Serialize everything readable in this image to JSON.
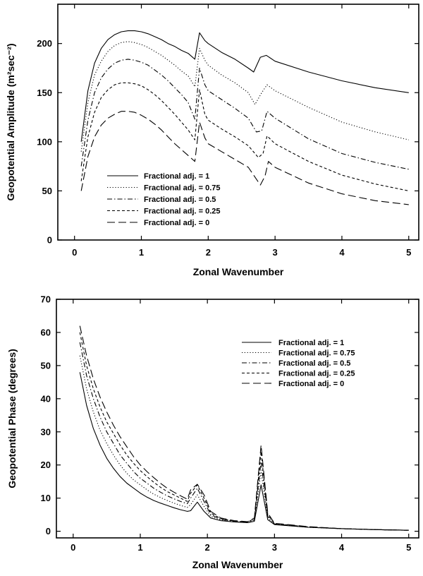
{
  "chart_data": [
    {
      "type": "line",
      "xlabel": "Zonal Wavenumber",
      "ylabel": "Geopotential Amplitude (m²sec⁻²)",
      "xlim": [
        -0.25,
        5.15
      ],
      "ylim": [
        0,
        240
      ],
      "xticks": [
        "0",
        "1",
        "2",
        "3",
        "4",
        "5"
      ],
      "yticks": [
        "0",
        "50",
        "100",
        "150",
        "200"
      ],
      "legend_position": "lower-left",
      "series": [
        {
          "name": "Fractional adj. = 1",
          "dash": "solid",
          "x": [
            0.1,
            0.2,
            0.3,
            0.4,
            0.5,
            0.6,
            0.7,
            0.8,
            0.9,
            1.0,
            1.1,
            1.2,
            1.3,
            1.4,
            1.5,
            1.6,
            1.7,
            1.8,
            1.87,
            1.95,
            2.0,
            2.2,
            2.4,
            2.6,
            2.68,
            2.78,
            2.87,
            3.0,
            3.5,
            4.0,
            4.5,
            5.0
          ],
          "y": [
            100,
            152,
            180,
            195,
            204,
            209,
            212,
            213,
            213,
            212,
            210,
            207,
            204,
            200,
            197,
            193,
            190,
            184,
            211,
            203,
            200,
            191,
            184,
            175,
            171,
            186,
            188,
            182,
            171,
            162,
            155,
            150
          ]
        },
        {
          "name": "Fractional adj. = 0.75",
          "dash": "dotted",
          "x": [
            0.1,
            0.2,
            0.3,
            0.4,
            0.5,
            0.6,
            0.7,
            0.8,
            0.9,
            1.0,
            1.1,
            1.2,
            1.3,
            1.4,
            1.5,
            1.6,
            1.7,
            1.8,
            1.87,
            1.95,
            2.0,
            2.2,
            2.4,
            2.6,
            2.7,
            2.8,
            2.88,
            3.0,
            3.5,
            4.0,
            4.5,
            5.0
          ],
          "y": [
            90,
            140,
            168,
            182,
            192,
            198,
            201,
            202,
            201,
            199,
            196,
            192,
            188,
            183,
            178,
            172,
            167,
            156,
            195,
            183,
            178,
            168,
            160,
            150,
            138,
            150,
            158,
            152,
            135,
            120,
            110,
            102
          ]
        },
        {
          "name": "Fractional adj. = 0.5",
          "dash": "dashdot",
          "x": [
            0.1,
            0.2,
            0.3,
            0.4,
            0.5,
            0.6,
            0.7,
            0.8,
            0.9,
            1.0,
            1.1,
            1.2,
            1.3,
            1.4,
            1.5,
            1.6,
            1.7,
            1.8,
            1.87,
            1.95,
            2.0,
            2.2,
            2.4,
            2.6,
            2.72,
            2.8,
            2.88,
            3.0,
            3.5,
            4.0,
            4.5,
            5.0
          ],
          "y": [
            75,
            122,
            150,
            165,
            174,
            180,
            183,
            184,
            183,
            181,
            178,
            173,
            168,
            162,
            155,
            148,
            140,
            123,
            175,
            158,
            152,
            143,
            134,
            124,
            110,
            111,
            131,
            124,
            103,
            88,
            79,
            72
          ]
        },
        {
          "name": "Fractional adj. = 0.25",
          "dash": "dashed",
          "x": [
            0.1,
            0.2,
            0.3,
            0.4,
            0.5,
            0.6,
            0.7,
            0.8,
            0.9,
            1.0,
            1.1,
            1.2,
            1.3,
            1.4,
            1.5,
            1.6,
            1.7,
            1.8,
            1.87,
            1.95,
            2.0,
            2.2,
            2.4,
            2.6,
            2.75,
            2.82,
            2.88,
            3.0,
            3.5,
            4.0,
            4.5,
            5.0
          ],
          "y": [
            60,
            105,
            130,
            145,
            153,
            158,
            160,
            160,
            159,
            157,
            153,
            148,
            142,
            135,
            128,
            120,
            112,
            102,
            153,
            128,
            122,
            113,
            105,
            96,
            84,
            88,
            106,
            98,
            80,
            66,
            57,
            50
          ]
        },
        {
          "name": "Fractional adj. = 0",
          "dash": "longdash",
          "x": [
            0.1,
            0.2,
            0.3,
            0.4,
            0.5,
            0.6,
            0.7,
            0.8,
            0.9,
            1.0,
            1.1,
            1.2,
            1.3,
            1.4,
            1.5,
            1.6,
            1.7,
            1.8,
            1.87,
            1.95,
            2.0,
            2.2,
            2.4,
            2.6,
            2.78,
            2.85,
            2.9,
            3.0,
            3.5,
            4.0,
            4.5,
            5.0
          ],
          "y": [
            50,
            85,
            105,
            117,
            124,
            128,
            131,
            131,
            130,
            127,
            123,
            118,
            112,
            105,
            98,
            92,
            86,
            80,
            120,
            104,
            98,
            90,
            82,
            74,
            56,
            65,
            80,
            74,
            58,
            47,
            40,
            36
          ]
        }
      ]
    },
    {
      "type": "line",
      "xlabel": "Zonal Wavenumber",
      "ylabel": "Geopotential Phase (degrees)",
      "xlim": [
        -0.25,
        5.15
      ],
      "ylim": [
        -2,
        70
      ],
      "xticks": [
        "0",
        "1",
        "2",
        "3",
        "4",
        "5"
      ],
      "yticks": [
        "0",
        "10",
        "20",
        "30",
        "40",
        "50",
        "60",
        "70"
      ],
      "legend_position": "top-right",
      "series": [
        {
          "name": "Fractional adj. = 1",
          "dash": "solid",
          "x": [
            0.1,
            0.2,
            0.3,
            0.4,
            0.5,
            0.6,
            0.7,
            0.8,
            0.9,
            1.0,
            1.1,
            1.2,
            1.3,
            1.4,
            1.5,
            1.6,
            1.7,
            1.75,
            1.85,
            1.95,
            2.05,
            2.2,
            2.4,
            2.6,
            2.7,
            2.8,
            2.9,
            3.0,
            3.5,
            4.0,
            4.5,
            5.0
          ],
          "y": [
            48,
            38,
            31,
            26,
            22,
            19,
            16.5,
            14.5,
            13,
            11.5,
            10.3,
            9.3,
            8.5,
            7.8,
            7.1,
            6.5,
            6,
            6.2,
            8.8,
            6,
            4,
            3.2,
            2.8,
            2.6,
            3,
            14,
            3.5,
            2,
            1.2,
            0.8,
            0.5,
            0.3
          ]
        },
        {
          "name": "Fractional adj. = 0.75",
          "dash": "dotted",
          "x": [
            0.1,
            0.2,
            0.3,
            0.4,
            0.5,
            0.6,
            0.7,
            0.8,
            0.9,
            1.0,
            1.1,
            1.2,
            1.3,
            1.4,
            1.5,
            1.6,
            1.7,
            1.75,
            1.85,
            1.95,
            2.05,
            2.2,
            2.4,
            2.6,
            2.7,
            2.8,
            2.9,
            3.0,
            3.5,
            4.0,
            4.5,
            5.0
          ],
          "y": [
            53,
            43,
            36,
            30.5,
            26.5,
            23,
            20,
            17.5,
            15.5,
            14,
            12.5,
            11.2,
            10.2,
            9.3,
            8.5,
            7.8,
            7.2,
            8,
            11,
            7.5,
            4.5,
            3.4,
            2.9,
            2.6,
            3.2,
            18,
            4,
            2.1,
            1.2,
            0.8,
            0.5,
            0.3
          ]
        },
        {
          "name": "Fractional adj. = 0.5",
          "dash": "dashdot",
          "x": [
            0.1,
            0.2,
            0.3,
            0.4,
            0.5,
            0.6,
            0.7,
            0.8,
            0.9,
            1.0,
            1.1,
            1.2,
            1.3,
            1.4,
            1.5,
            1.6,
            1.7,
            1.75,
            1.85,
            1.95,
            2.05,
            2.2,
            2.4,
            2.6,
            2.7,
            2.8,
            2.9,
            3.0,
            3.5,
            4.0,
            4.5,
            5.0
          ],
          "y": [
            57,
            47,
            40,
            34.5,
            30,
            26.5,
            23,
            20.5,
            18,
            16,
            14.5,
            13,
            11.8,
            10.7,
            9.8,
            9,
            8.3,
            10,
            13,
            9,
            5,
            3.6,
            3,
            2.7,
            3.5,
            21,
            4.5,
            2.2,
            1.3,
            0.8,
            0.5,
            0.3
          ]
        },
        {
          "name": "Fractional adj. = 0.25",
          "dash": "dashed",
          "x": [
            0.1,
            0.2,
            0.3,
            0.4,
            0.5,
            0.6,
            0.7,
            0.8,
            0.9,
            1.0,
            1.1,
            1.2,
            1.3,
            1.4,
            1.5,
            1.6,
            1.7,
            1.75,
            1.85,
            1.95,
            2.05,
            2.2,
            2.4,
            2.6,
            2.7,
            2.8,
            2.9,
            3.0,
            3.5,
            4.0,
            4.5,
            5.0
          ],
          "y": [
            60,
            50,
            43,
            37.5,
            33,
            29.5,
            26,
            23,
            20.5,
            18.3,
            16.5,
            14.8,
            13.3,
            12,
            11,
            10,
            9,
            11.5,
            14,
            10,
            5.5,
            3.8,
            3.1,
            2.8,
            3.8,
            24,
            5,
            2.3,
            1.3,
            0.8,
            0.5,
            0.3
          ]
        },
        {
          "name": "Fractional adj. = 0",
          "dash": "longdash",
          "x": [
            0.1,
            0.2,
            0.3,
            0.4,
            0.5,
            0.6,
            0.7,
            0.8,
            0.9,
            1.0,
            1.1,
            1.2,
            1.3,
            1.4,
            1.5,
            1.6,
            1.7,
            1.75,
            1.85,
            1.95,
            2.05,
            2.2,
            2.4,
            2.6,
            2.7,
            2.8,
            2.9,
            3.0,
            3.5,
            4.0,
            4.5,
            5.0
          ],
          "y": [
            62,
            53,
            46,
            40.5,
            36,
            32,
            28.5,
            25.5,
            22.5,
            20,
            18,
            16.2,
            14.5,
            13,
            11.8,
            10.7,
            9.7,
            12.5,
            14.2,
            11,
            6,
            4,
            3.2,
            2.9,
            4,
            26,
            5.5,
            2.4,
            1.4,
            0.8,
            0.5,
            0.3
          ]
        }
      ]
    }
  ]
}
